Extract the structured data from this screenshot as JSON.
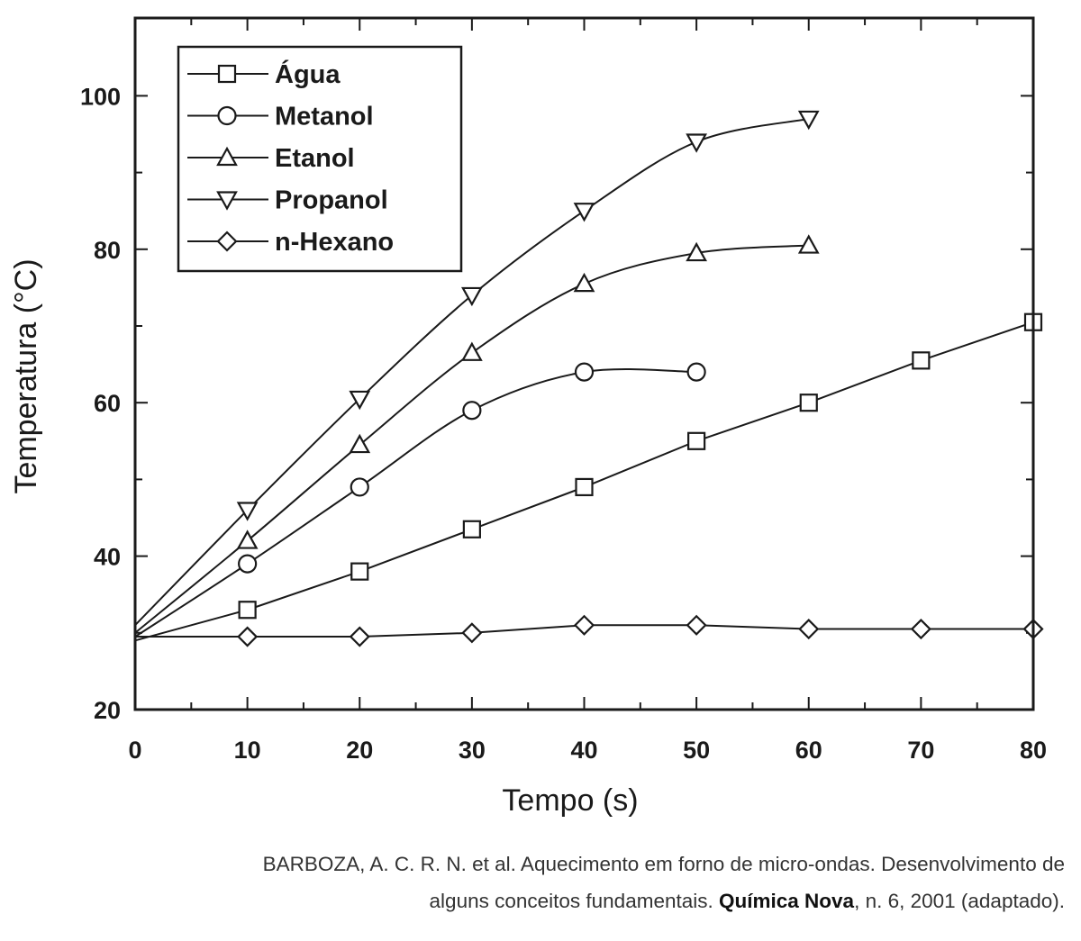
{
  "chart_data": {
    "type": "line",
    "xlabel": "Tempo (s)",
    "ylabel": "Temperatura (°C)",
    "xlim": [
      0,
      80
    ],
    "ylim": [
      20,
      110
    ],
    "x_ticks": [
      0,
      10,
      20,
      30,
      40,
      50,
      60,
      70,
      80
    ],
    "y_ticks": [
      20,
      40,
      60,
      80,
      100
    ],
    "grid": false,
    "legend_position": "top-left",
    "series": [
      {
        "name": "Água",
        "marker": "square",
        "smooth": false,
        "points": [
          [
            0,
            29
          ],
          [
            10,
            33
          ],
          [
            20,
            38
          ],
          [
            30,
            43.5
          ],
          [
            40,
            49
          ],
          [
            50,
            55
          ],
          [
            60,
            60
          ],
          [
            70,
            65.5
          ],
          [
            80,
            70.5
          ]
        ]
      },
      {
        "name": "Metanol",
        "marker": "circle",
        "smooth": true,
        "points": [
          [
            0,
            29.5
          ],
          [
            10,
            39
          ],
          [
            20,
            49
          ],
          [
            30,
            59
          ],
          [
            40,
            64
          ],
          [
            50,
            64
          ]
        ]
      },
      {
        "name": "Etanol",
        "marker": "triangle-up",
        "smooth": true,
        "points": [
          [
            0,
            30
          ],
          [
            10,
            42
          ],
          [
            20,
            54.5
          ],
          [
            30,
            66.5
          ],
          [
            40,
            75.5
          ],
          [
            50,
            79.5
          ],
          [
            60,
            80.5
          ]
        ]
      },
      {
        "name": "Propanol",
        "marker": "triangle-down",
        "smooth": true,
        "points": [
          [
            0,
            31
          ],
          [
            10,
            46
          ],
          [
            20,
            60.5
          ],
          [
            30,
            74
          ],
          [
            40,
            85
          ],
          [
            50,
            94
          ],
          [
            60,
            97
          ]
        ]
      },
      {
        "name": "n-Hexano",
        "marker": "diamond",
        "smooth": false,
        "points": [
          [
            0,
            29.5
          ],
          [
            10,
            29.5
          ],
          [
            20,
            29.5
          ],
          [
            30,
            30
          ],
          [
            40,
            31
          ],
          [
            50,
            31
          ],
          [
            60,
            30.5
          ],
          [
            70,
            30.5
          ],
          [
            80,
            30.5
          ]
        ]
      }
    ]
  },
  "citation": {
    "line1": "BARBOZA, A. C. R. N. et al. Aquecimento em forno de micro-ondas. Desenvolvimento de",
    "line2_pre": "alguns conceitos fundamentais.",
    "line2_bold": "Química Nova",
    "line2_post": ", n. 6, 2001 (adaptado)."
  }
}
